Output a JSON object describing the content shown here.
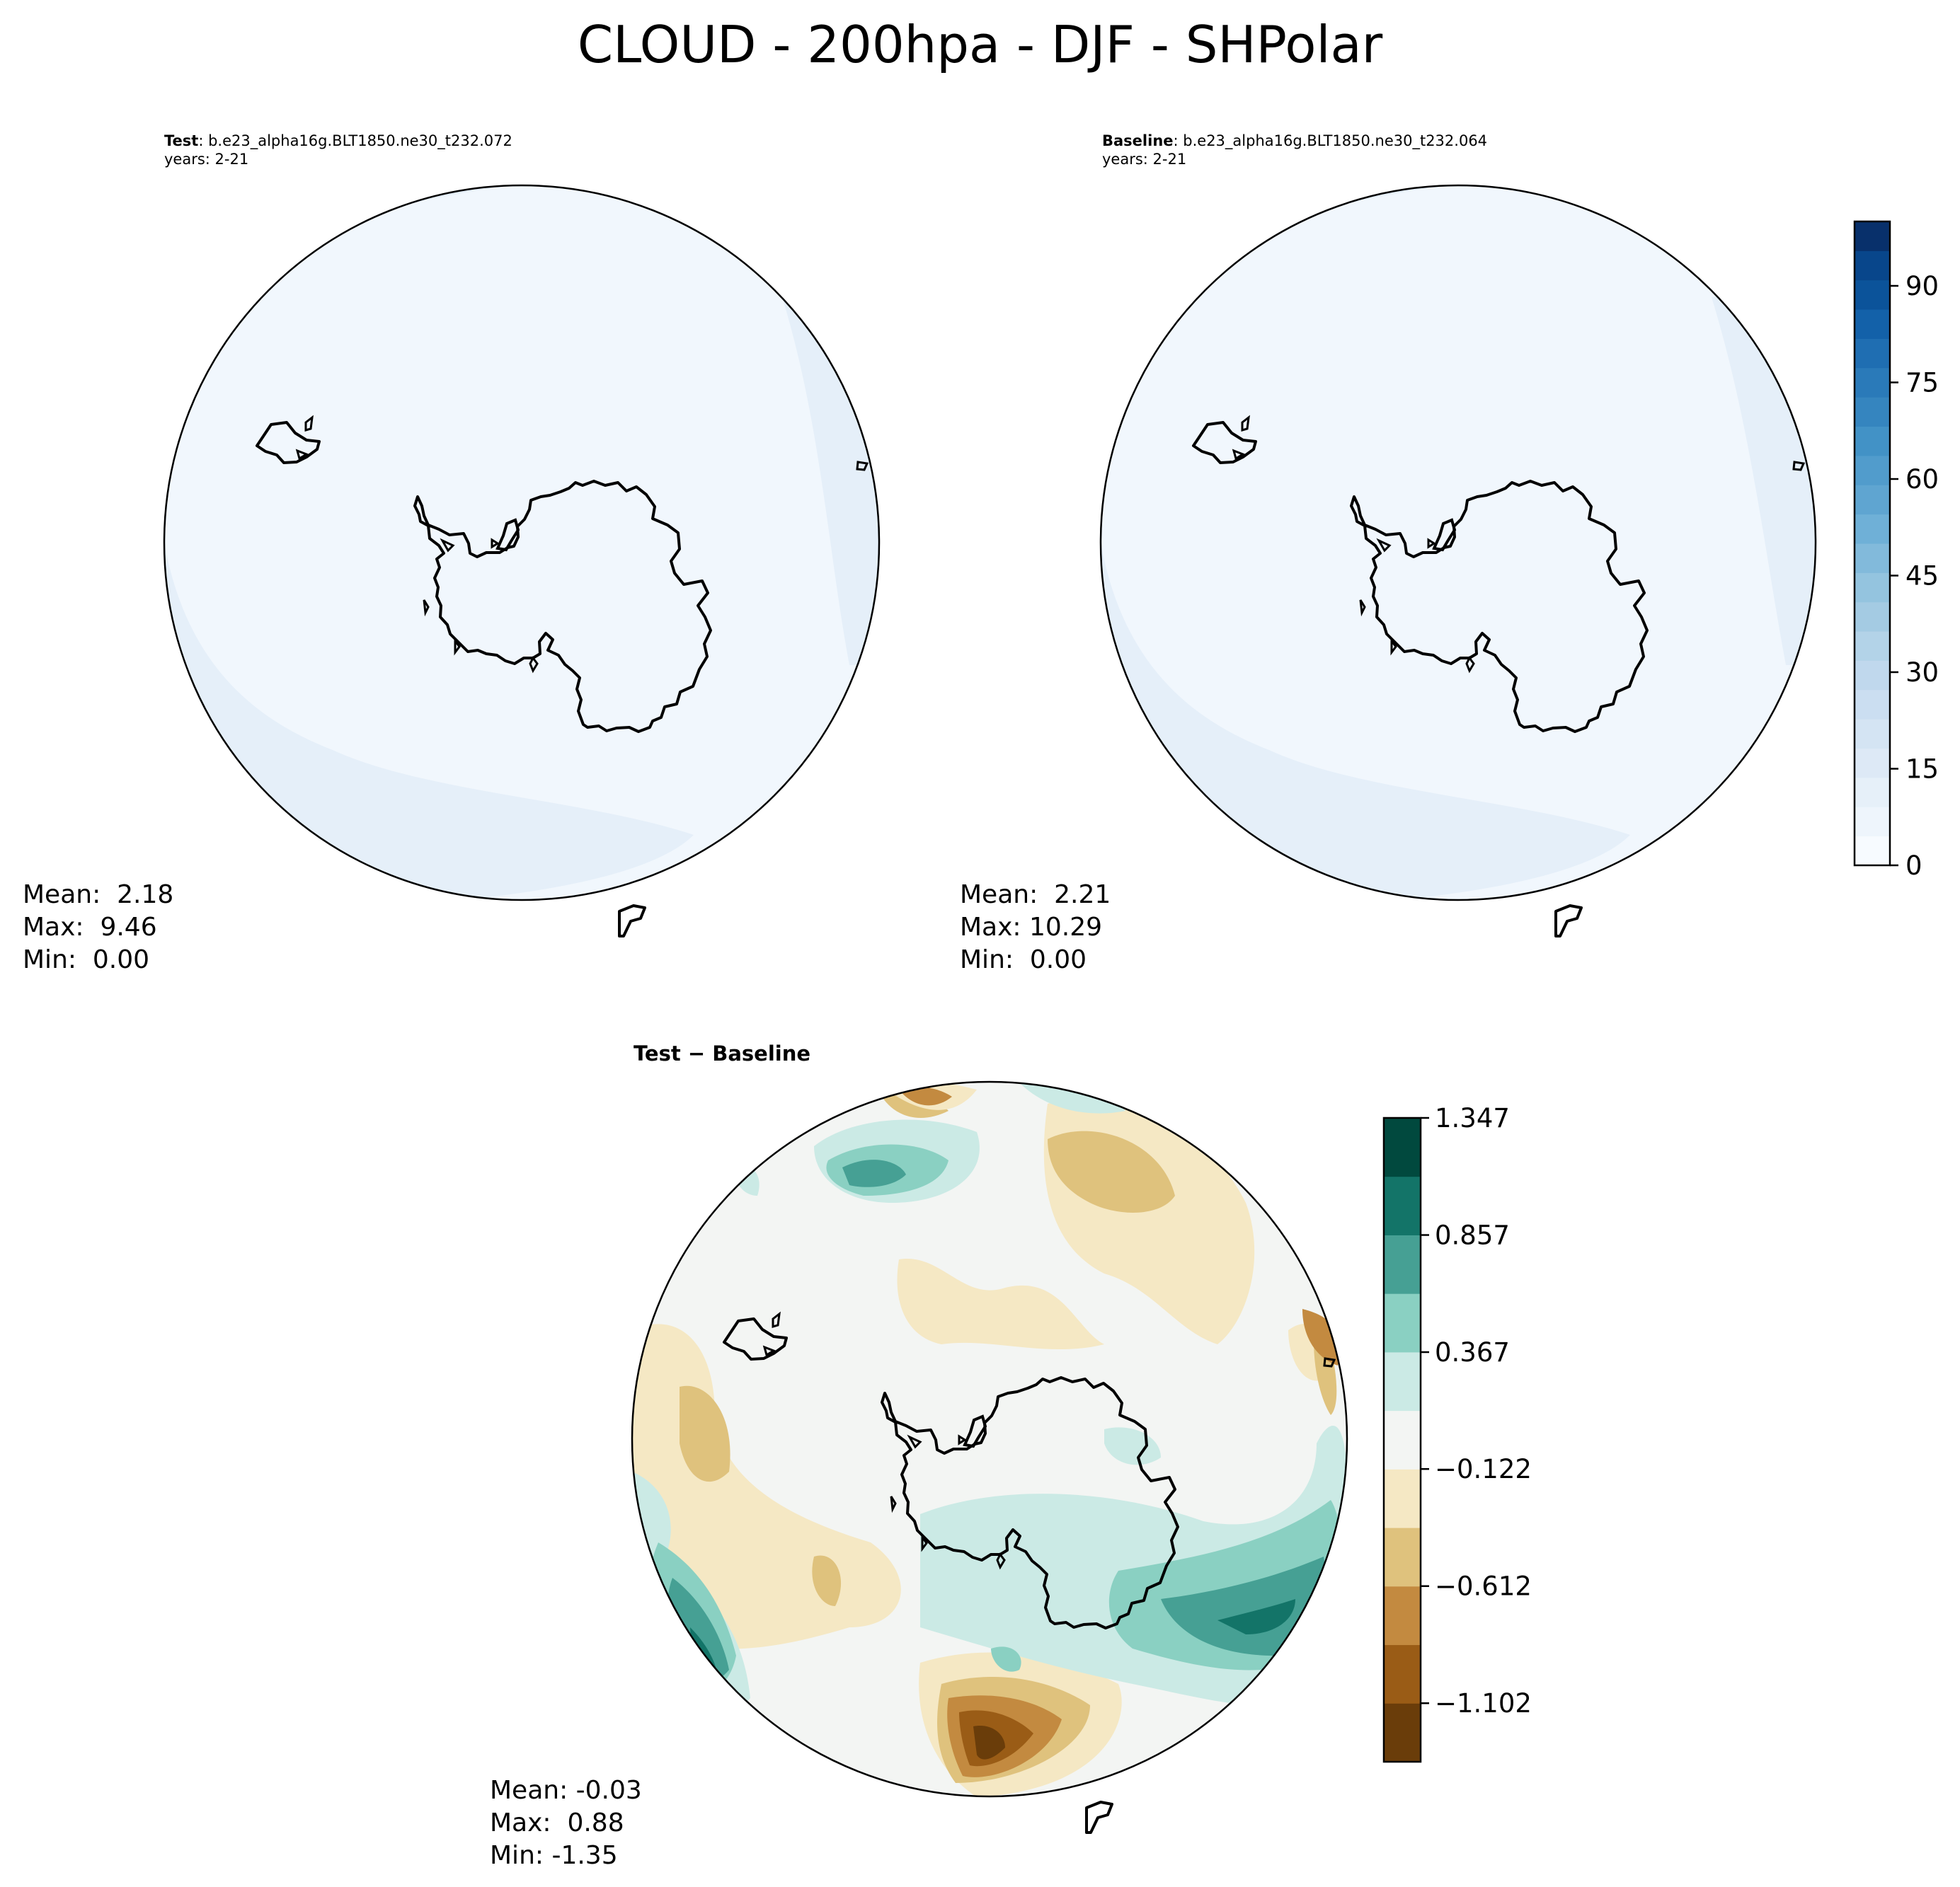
{
  "figure": {
    "title": "CLOUD - 200hpa - DJF - SHPolar"
  },
  "panels": {
    "test": {
      "label_bold": "Test",
      "label_rest": ": b.e23_alpha16g.BLT1850.ne30_t232.072",
      "years": "years: 2-21",
      "mean": "Mean:  2.18",
      "max": "Max:  9.46",
      "min": "Min:  0.00"
    },
    "baseline": {
      "label_bold": "Baseline",
      "label_rest": ": b.e23_alpha16g.BLT1850.ne30_t232.064",
      "years": "years: 2-21",
      "mean": "Mean:  2.21",
      "max": "Max: 10.29",
      "min": "Min:  0.00"
    },
    "difference": {
      "title": "Test − Baseline",
      "mean": "Mean: -0.03",
      "max": "Max:  0.88",
      "min": "Min: -1.35"
    }
  },
  "colorbars": {
    "cloud": {
      "colormap": "Blues",
      "range": [
        0,
        100
      ],
      "levels": 21,
      "colors": [
        "#f7fbff",
        "#eef5fc",
        "#e6f0f9",
        "#dde9f6",
        "#d4e4f3",
        "#cbdef1",
        "#c0d8ed",
        "#b3d3e8",
        "#a4cbe3",
        "#94c4df",
        "#82badb",
        "#6fb0d7",
        "#5fa5d1",
        "#519ccc",
        "#4292c6",
        "#3585bf",
        "#2a7ab9",
        "#1f6eb2",
        "#1361a9",
        "#0b539a",
        "#08468b",
        "#08306b"
      ],
      "ticks": [
        "0",
        "15",
        "30",
        "45",
        "60",
        "75",
        "90"
      ],
      "tick_values": [
        0,
        15,
        30,
        45,
        60,
        75,
        90
      ]
    },
    "difference": {
      "colormap": "BrBG",
      "range": [
        -1.347,
        1.347
      ],
      "colors": [
        "#6a3d0a",
        "#9a5c16",
        "#c38a40",
        "#dfc27d",
        "#f5e8c4",
        "#f3f5f3",
        "#cbeae5",
        "#8ad0c2",
        "#46a094",
        "#137468",
        "#01493e"
      ],
      "ticks": [
        "1.347",
        "0.857",
        "0.367",
        "−0.122",
        "−0.612",
        "−1.102"
      ],
      "tick_values": [
        1.347,
        0.857,
        0.367,
        -0.122,
        -0.612,
        -1.102
      ]
    }
  }
}
